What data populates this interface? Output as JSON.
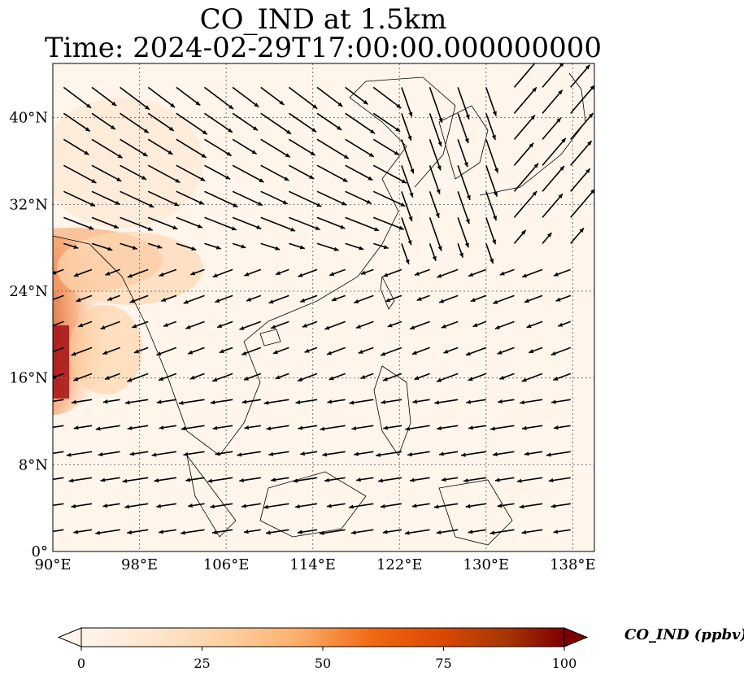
{
  "title": {
    "line1": "CO_IND at 1.5km",
    "line2": "Time: 2024-02-29T17:00:00.000000000"
  },
  "map": {
    "extent": {
      "lon": [
        90,
        140
      ],
      "lat": [
        0,
        45
      ]
    },
    "lon_ticks": [
      {
        "value": 90,
        "label": "90°E"
      },
      {
        "value": 98,
        "label": "98°E"
      },
      {
        "value": 106,
        "label": "106°E"
      },
      {
        "value": 114,
        "label": "114°E"
      },
      {
        "value": 122,
        "label": "122°E"
      },
      {
        "value": 130,
        "label": "130°E"
      },
      {
        "value": 138,
        "label": "138°E"
      }
    ],
    "lat_ticks": [
      {
        "value": 0,
        "label": "0°"
      },
      {
        "value": 8,
        "label": "8°N"
      },
      {
        "value": 16,
        "label": "16°N"
      },
      {
        "value": 24,
        "label": "24°N"
      },
      {
        "value": 32,
        "label": "32°N"
      },
      {
        "value": 40,
        "label": "40°N"
      }
    ],
    "gridlines": true,
    "background_color": "#fff5eb",
    "hotspot_colors": [
      "#fdd9b4",
      "#f4995e",
      "#d1451d",
      "#a50f15"
    ]
  },
  "colorbar": {
    "label": "CO_IND (ppbv)",
    "min": 0,
    "max": 100,
    "extend": "both",
    "ticks": [
      {
        "value": 0,
        "label": "0"
      },
      {
        "value": 25,
        "label": "25"
      },
      {
        "value": 50,
        "label": "50"
      },
      {
        "value": 75,
        "label": "75"
      },
      {
        "value": 100,
        "label": "100"
      }
    ],
    "colormap": [
      "#fff5eb",
      "#fee6ce",
      "#fdd0a2",
      "#fdae6b",
      "#f16913",
      "#d94801",
      "#a63603",
      "#7f0000"
    ]
  }
}
